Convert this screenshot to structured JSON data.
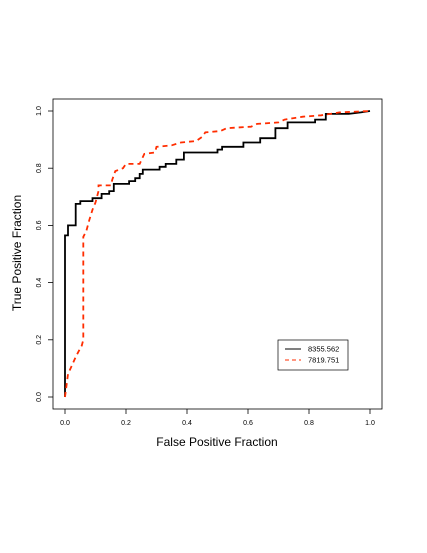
{
  "chart_data": {
    "type": "line",
    "title": "",
    "xlabel": "False Positive Fraction",
    "ylabel": "True Positive Fraction",
    "xlim": [
      0,
      1
    ],
    "ylim": [
      0,
      1
    ],
    "x_ticks": [
      "0.0",
      "0.2",
      "0.4",
      "0.6",
      "0.8",
      "1.0"
    ],
    "y_ticks": [
      "0.0",
      "0.2",
      "0.4",
      "0.6",
      "0.8",
      "1.0"
    ],
    "grid": false,
    "legend_position": "bottom-right",
    "series": [
      {
        "name": "8355.562",
        "color": "#000000",
        "style": "solid",
        "points": [
          [
            0,
            0
          ],
          [
            0,
            0.565
          ],
          [
            0.01,
            0.565
          ],
          [
            0.01,
            0.6
          ],
          [
            0.035,
            0.6
          ],
          [
            0.035,
            0.675
          ],
          [
            0.05,
            0.675
          ],
          [
            0.05,
            0.685
          ],
          [
            0.09,
            0.685
          ],
          [
            0.09,
            0.695
          ],
          [
            0.12,
            0.695
          ],
          [
            0.12,
            0.71
          ],
          [
            0.145,
            0.71
          ],
          [
            0.145,
            0.72
          ],
          [
            0.16,
            0.72
          ],
          [
            0.16,
            0.745
          ],
          [
            0.21,
            0.745
          ],
          [
            0.21,
            0.755
          ],
          [
            0.23,
            0.755
          ],
          [
            0.23,
            0.765
          ],
          [
            0.245,
            0.765
          ],
          [
            0.245,
            0.78
          ],
          [
            0.255,
            0.78
          ],
          [
            0.255,
            0.795
          ],
          [
            0.31,
            0.795
          ],
          [
            0.31,
            0.805
          ],
          [
            0.33,
            0.805
          ],
          [
            0.33,
            0.815
          ],
          [
            0.365,
            0.815
          ],
          [
            0.365,
            0.83
          ],
          [
            0.39,
            0.83
          ],
          [
            0.39,
            0.855
          ],
          [
            0.5,
            0.855
          ],
          [
            0.5,
            0.865
          ],
          [
            0.515,
            0.865
          ],
          [
            0.515,
            0.875
          ],
          [
            0.585,
            0.875
          ],
          [
            0.585,
            0.89
          ],
          [
            0.64,
            0.89
          ],
          [
            0.64,
            0.905
          ],
          [
            0.69,
            0.905
          ],
          [
            0.69,
            0.94
          ],
          [
            0.73,
            0.94
          ],
          [
            0.73,
            0.96
          ],
          [
            0.82,
            0.96
          ],
          [
            0.82,
            0.97
          ],
          [
            0.855,
            0.97
          ],
          [
            0.855,
            0.99
          ],
          [
            0.93,
            0.99
          ],
          [
            0.97,
            0.995
          ],
          [
            1,
            1
          ]
        ]
      },
      {
        "name": "7819.751",
        "color": "#ff2d00",
        "style": "dashed",
        "points": [
          [
            0,
            0
          ],
          [
            0.01,
            0.08
          ],
          [
            0.035,
            0.14
          ],
          [
            0.045,
            0.16
          ],
          [
            0.055,
            0.18
          ],
          [
            0.06,
            0.2
          ],
          [
            0.06,
            0.56
          ],
          [
            0.07,
            0.58
          ],
          [
            0.08,
            0.62
          ],
          [
            0.09,
            0.655
          ],
          [
            0.1,
            0.68
          ],
          [
            0.105,
            0.7
          ],
          [
            0.11,
            0.72
          ],
          [
            0.11,
            0.74
          ],
          [
            0.15,
            0.74
          ],
          [
            0.155,
            0.76
          ],
          [
            0.165,
            0.79
          ],
          [
            0.19,
            0.8
          ],
          [
            0.2,
            0.815
          ],
          [
            0.245,
            0.815
          ],
          [
            0.26,
            0.85
          ],
          [
            0.295,
            0.855
          ],
          [
            0.3,
            0.875
          ],
          [
            0.35,
            0.88
          ],
          [
            0.38,
            0.89
          ],
          [
            0.43,
            0.895
          ],
          [
            0.45,
            0.91
          ],
          [
            0.46,
            0.925
          ],
          [
            0.51,
            0.93
          ],
          [
            0.53,
            0.94
          ],
          [
            0.61,
            0.945
          ],
          [
            0.63,
            0.955
          ],
          [
            0.7,
            0.96
          ],
          [
            0.72,
            0.97
          ],
          [
            0.78,
            0.98
          ],
          [
            0.84,
            0.985
          ],
          [
            0.9,
            0.995
          ],
          [
            1,
            1
          ]
        ]
      }
    ]
  }
}
